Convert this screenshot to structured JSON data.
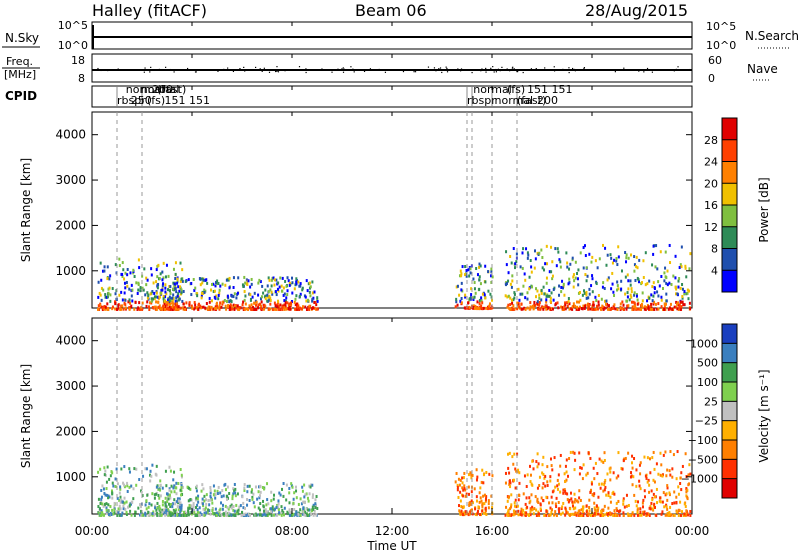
{
  "header": {
    "title": "Halley (fitACF)",
    "beam": "Beam 06",
    "date": "28/Aug/2015"
  },
  "panel_labels": {
    "nsky": "N.Sky",
    "nsearch": "N.Search",
    "freq": "Freq.",
    "freq_unit": "[MHz]",
    "nave": "Nave",
    "cpid": "CPID"
  },
  "strip_ticks": {
    "nsky_left": [
      "10^5",
      "10^0"
    ],
    "nsky_right": [
      "10^5",
      "10^0"
    ],
    "freq_left": [
      "18",
      "8"
    ],
    "nave_right": [
      "60",
      "0"
    ]
  },
  "cpid": {
    "modes": [
      {
        "t": 1.0,
        "label": "rbspr"
      },
      {
        "t": 1.35,
        "label": "normal"
      },
      {
        "t": 1.55,
        "label": "250"
      },
      {
        "t": 1.95,
        "label": "normal"
      },
      {
        "t": 2.2,
        "label": "(fs)"
      },
      {
        "t": 2.6,
        "label": "(fast)"
      },
      {
        "t": 2.9,
        "label": "151 151"
      },
      {
        "t": 2.4,
        "label": "200"
      },
      {
        "t": 15.0,
        "label": "rbspr"
      },
      {
        "t": 15.25,
        "label": "normal"
      },
      {
        "t": 16.1,
        "label": "normal"
      },
      {
        "t": 16.6,
        "label": "(fs)"
      },
      {
        "t": 17.0,
        "label": "(fast)"
      },
      {
        "t": 17.4,
        "label": "151 151"
      },
      {
        "t": 17.8,
        "label": "200"
      }
    ],
    "cpid_lines": [
      1.0,
      2.0,
      15.0,
      15.2,
      16.0,
      17.0
    ]
  },
  "chart_data": [
    {
      "type": "heatmap",
      "name": "power",
      "ylabel": "Slant Range [km]",
      "xlabel": "",
      "ylim": [
        180,
        4500
      ],
      "yticks": [
        1000,
        2000,
        3000,
        4000
      ],
      "colorbar": {
        "label": "Power [dB]",
        "ticks": [
          "4",
          "8",
          "12",
          "16",
          "20",
          "24",
          "28"
        ],
        "colors": [
          "#0000ff",
          "#1f4fae",
          "#2e8b57",
          "#7fbf3f",
          "#f0c000",
          "#ff8000",
          "#ff4000",
          "#e00000"
        ]
      },
      "activity": [
        {
          "t0": 0.2,
          "t1": 3.6,
          "r0": 180,
          "r1": 1300
        },
        {
          "t0": 2.5,
          "t1": 9.0,
          "r0": 180,
          "r1": 900
        },
        {
          "t0": 14.5,
          "t1": 16.0,
          "r0": 200,
          "r1": 1200
        },
        {
          "t0": 16.5,
          "t1": 23.9,
          "r0": 180,
          "r1": 1600
        }
      ]
    },
    {
      "type": "heatmap",
      "name": "velocity",
      "ylabel": "Slant Range [km]",
      "xlabel": "Time UT",
      "ylim": [
        180,
        4500
      ],
      "yticks": [
        1000,
        2000,
        3000,
        4000
      ],
      "colorbar": {
        "label": "Velocity [m s⁻¹]",
        "ticks": [
          "1000",
          "500",
          "100",
          "25",
          "−25",
          "−100",
          "−500",
          "−1000"
        ],
        "colors": [
          "#1a3fbf",
          "#3a7fbf",
          "#3f9f4f",
          "#7fd04f",
          "#c0c0c0",
          "#ffb000",
          "#ff7f00",
          "#ff3000",
          "#e00000"
        ]
      },
      "activity": [
        {
          "t0": 0.2,
          "t1": 3.6,
          "r0": 180,
          "r1": 1300
        },
        {
          "t0": 2.5,
          "t1": 9.0,
          "r0": 180,
          "r1": 900
        },
        {
          "t0": 14.5,
          "t1": 16.0,
          "r0": 200,
          "r1": 1200
        },
        {
          "t0": 16.5,
          "t1": 23.9,
          "r0": 180,
          "r1": 1600
        }
      ]
    }
  ],
  "time_axis": {
    "ticks": [
      "00:00",
      "04:00",
      "08:00",
      "12:00",
      "16:00",
      "20:00",
      "00:00"
    ],
    "label": "Time UT"
  }
}
